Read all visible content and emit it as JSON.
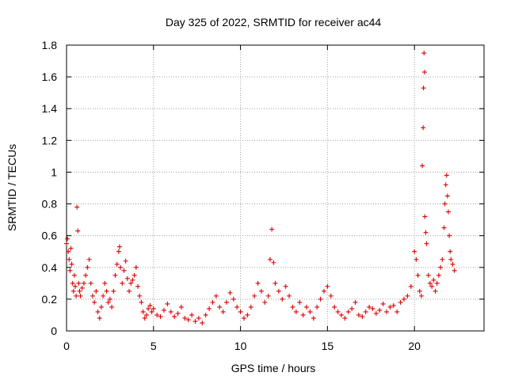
{
  "chart_data": {
    "type": "scatter",
    "title": "Day 325 of 2022, SRMTID for receiver ac44",
    "xlabel": "GPS time / hours",
    "ylabel": "SRMTID / TECUs",
    "xlim": [
      0,
      24
    ],
    "ylim": [
      0,
      1.8
    ],
    "x_ticks": [
      0,
      5,
      10,
      15,
      20
    ],
    "x_tick_labels": [
      "0",
      "5",
      "10",
      "15",
      "20"
    ],
    "y_ticks": [
      0,
      0.2,
      0.4,
      0.6,
      0.8,
      1.0,
      1.2,
      1.4,
      1.6,
      1.8
    ],
    "y_tick_labels": [
      "0",
      "0.2",
      "0.4",
      "0.6",
      "0.8",
      "1",
      "1.2",
      "1.4",
      "1.6",
      "1.8"
    ],
    "grid": true,
    "marker": "+",
    "color": "#dd0000",
    "series": [
      {
        "name": "SRMTID",
        "x": [
          0.0,
          0.05,
          0.1,
          0.15,
          0.2,
          0.25,
          0.3,
          0.35,
          0.4,
          0.45,
          0.5,
          0.55,
          0.6,
          0.65,
          0.7,
          0.75,
          0.8,
          0.9,
          1.0,
          1.1,
          1.2,
          1.3,
          1.4,
          1.5,
          1.6,
          1.7,
          1.8,
          1.9,
          2.0,
          2.1,
          2.2,
          2.3,
          2.4,
          2.5,
          2.6,
          2.7,
          2.8,
          2.9,
          3.0,
          3.05,
          3.1,
          3.2,
          3.3,
          3.4,
          3.5,
          3.6,
          3.7,
          3.8,
          3.9,
          4.0,
          4.1,
          4.2,
          4.3,
          4.4,
          4.5,
          4.6,
          4.7,
          4.8,
          4.9,
          5.0,
          5.2,
          5.4,
          5.6,
          5.8,
          6.0,
          6.2,
          6.4,
          6.6,
          6.8,
          7.0,
          7.2,
          7.4,
          7.6,
          7.8,
          8.0,
          8.2,
          8.4,
          8.6,
          8.8,
          9.0,
          9.2,
          9.4,
          9.6,
          9.8,
          10.0,
          10.2,
          10.4,
          10.6,
          10.8,
          11.0,
          11.2,
          11.4,
          11.6,
          11.7,
          11.8,
          11.9,
          12.0,
          12.2,
          12.4,
          12.6,
          12.8,
          13.0,
          13.2,
          13.4,
          13.6,
          13.8,
          14.0,
          14.2,
          14.4,
          14.6,
          14.8,
          15.0,
          15.2,
          15.4,
          15.6,
          15.8,
          16.0,
          16.2,
          16.4,
          16.6,
          16.8,
          17.0,
          17.2,
          17.4,
          17.6,
          17.8,
          18.0,
          18.2,
          18.4,
          18.6,
          18.8,
          19.0,
          19.2,
          19.4,
          19.6,
          19.8,
          20.0,
          20.1,
          20.2,
          20.3,
          20.4,
          20.45,
          20.5,
          20.52,
          20.55,
          20.58,
          20.6,
          20.65,
          20.7,
          20.8,
          20.9,
          21.0,
          21.1,
          21.2,
          21.3,
          21.4,
          21.5,
          21.6,
          21.7,
          21.75,
          21.8,
          21.85,
          21.9,
          21.95,
          22.0,
          22.05,
          22.1,
          22.2,
          22.3
        ],
        "y": [
          0.55,
          0.58,
          0.5,
          0.45,
          0.38,
          0.52,
          0.42,
          0.3,
          0.25,
          0.35,
          0.28,
          0.22,
          0.78,
          0.63,
          0.3,
          0.25,
          0.22,
          0.27,
          0.3,
          0.35,
          0.4,
          0.45,
          0.3,
          0.22,
          0.18,
          0.25,
          0.12,
          0.08,
          0.15,
          0.22,
          0.3,
          0.25,
          0.18,
          0.2,
          0.15,
          0.25,
          0.35,
          0.42,
          0.5,
          0.53,
          0.4,
          0.3,
          0.38,
          0.44,
          0.33,
          0.25,
          0.3,
          0.32,
          0.35,
          0.4,
          0.28,
          0.22,
          0.18,
          0.12,
          0.08,
          0.1,
          0.14,
          0.16,
          0.12,
          0.14,
          0.1,
          0.09,
          0.13,
          0.17,
          0.12,
          0.09,
          0.11,
          0.15,
          0.08,
          0.07,
          0.1,
          0.06,
          0.08,
          0.05,
          0.1,
          0.14,
          0.18,
          0.22,
          0.15,
          0.12,
          0.18,
          0.24,
          0.2,
          0.15,
          0.12,
          0.08,
          0.1,
          0.15,
          0.22,
          0.3,
          0.25,
          0.18,
          0.22,
          0.45,
          0.64,
          0.43,
          0.3,
          0.25,
          0.2,
          0.28,
          0.22,
          0.15,
          0.12,
          0.18,
          0.1,
          0.15,
          0.12,
          0.08,
          0.15,
          0.2,
          0.25,
          0.28,
          0.22,
          0.15,
          0.12,
          0.1,
          0.08,
          0.12,
          0.14,
          0.18,
          0.1,
          0.09,
          0.12,
          0.15,
          0.14,
          0.11,
          0.13,
          0.17,
          0.12,
          0.15,
          0.16,
          0.12,
          0.18,
          0.2,
          0.22,
          0.28,
          0.5,
          0.45,
          0.35,
          0.25,
          0.22,
          1.04,
          1.28,
          1.53,
          1.75,
          1.63,
          0.72,
          0.62,
          0.55,
          0.35,
          0.3,
          0.28,
          0.32,
          0.25,
          0.3,
          0.35,
          0.4,
          0.45,
          0.65,
          0.8,
          0.92,
          0.98,
          0.85,
          0.75,
          0.6,
          0.5,
          0.45,
          0.42,
          0.38
        ]
      }
    ]
  }
}
